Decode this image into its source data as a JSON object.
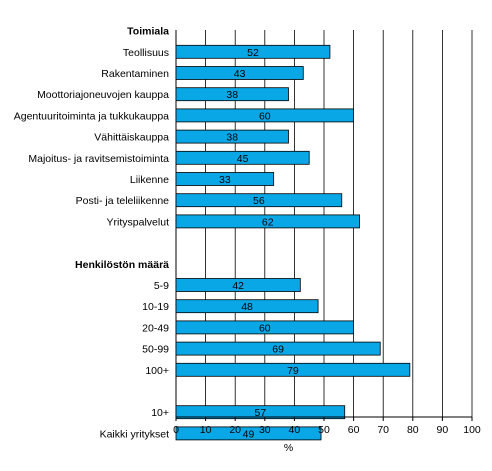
{
  "chart_data": {
    "type": "bar",
    "orientation": "horizontal",
    "xlabel": "%",
    "xlim": [
      0,
      100
    ],
    "xticks": [
      0,
      10,
      20,
      30,
      40,
      50,
      60,
      70,
      80,
      90,
      100
    ],
    "grid": "vertical gridlines",
    "bar_color": "#0aa7e6",
    "groups": [
      {
        "title": "Toimiala",
        "categories": [
          "Teollisuus",
          "Rakentaminen",
          "Moottoriajoneuvojen kauppa",
          "Agentuuritoiminta ja tukkukauppa",
          "Vähittäiskauppa",
          "Majoitus- ja ravitsemistoiminta",
          "Liikenne",
          "Posti- ja teleliikenne",
          "Yrityspalvelut"
        ],
        "values": [
          52,
          43,
          38,
          60,
          38,
          45,
          33,
          56,
          62
        ]
      },
      {
        "title": "Henkilöstön määrä",
        "categories": [
          "5-9",
          "10-19",
          "20-49",
          "50-99",
          "100+"
        ],
        "values": [
          42,
          48,
          60,
          69,
          79
        ]
      },
      {
        "title": "",
        "categories": [
          "10+",
          "Kaikki yritykset"
        ],
        "values": [
          57,
          49
        ]
      }
    ]
  }
}
